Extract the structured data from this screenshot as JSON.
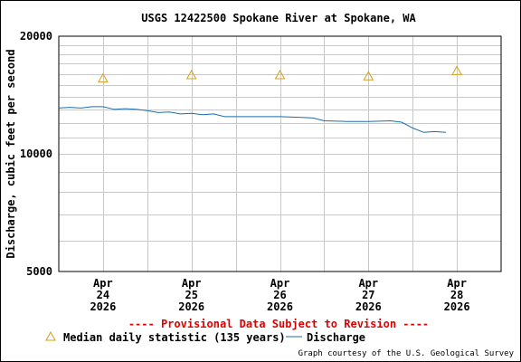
{
  "chart_data": {
    "type": "line",
    "title": "USGS 12422500 Spokane River at Spokane, WA",
    "ylabel": "Discharge, cubic feet per second",
    "xlabel": "",
    "y_scale": "log",
    "ylim": [
      5000,
      20000
    ],
    "y_ticks": [
      "5000",
      "10000",
      "20000"
    ],
    "x_range_days": [
      "2026-04-23T12:00",
      "2026-04-28T12:00"
    ],
    "x_ticks": [
      {
        "month": "Apr",
        "day": "24",
        "year": "2026",
        "date": "2026-04-24"
      },
      {
        "month": "Apr",
        "day": "25",
        "year": "2026",
        "date": "2026-04-25"
      },
      {
        "month": "Apr",
        "day": "26",
        "year": "2026",
        "date": "2026-04-26"
      },
      {
        "month": "Apr",
        "day": "27",
        "year": "2026",
        "date": "2026-04-27"
      },
      {
        "month": "Apr",
        "day": "28",
        "year": "2026",
        "date": "2026-04-28"
      }
    ],
    "grid": true,
    "legend_position": "bottom",
    "provisional_note": "---- Provisional Data Subject to Revision ----",
    "credit": "Graph courtesy of the U.S. Geological Survey",
    "median": {
      "name": "Median daily statistic (135 years)",
      "color": "#d4a017",
      "points": [
        {
          "date": "2026-04-24",
          "value": 15600
        },
        {
          "date": "2026-04-25",
          "value": 15900
        },
        {
          "date": "2026-04-26",
          "value": 15900
        },
        {
          "date": "2026-04-27",
          "value": 15800
        },
        {
          "date": "2026-04-28",
          "value": 16300
        }
      ]
    },
    "discharge": {
      "name": "Discharge",
      "color": "#1a6ea8",
      "points": [
        {
          "t": "2026-04-23T12:00",
          "value": 13100
        },
        {
          "t": "2026-04-23T15:00",
          "value": 13150
        },
        {
          "t": "2026-04-23T18:00",
          "value": 13100
        },
        {
          "t": "2026-04-23T21:00",
          "value": 13200
        },
        {
          "t": "2026-04-24T00:00",
          "value": 13200
        },
        {
          "t": "2026-04-24T03:00",
          "value": 13000
        },
        {
          "t": "2026-04-24T06:00",
          "value": 13050
        },
        {
          "t": "2026-04-24T09:00",
          "value": 13000
        },
        {
          "t": "2026-04-24T12:00",
          "value": 12900
        },
        {
          "t": "2026-04-24T15:00",
          "value": 12750
        },
        {
          "t": "2026-04-24T18:00",
          "value": 12800
        },
        {
          "t": "2026-04-24T21:00",
          "value": 12650
        },
        {
          "t": "2026-04-25T00:00",
          "value": 12700
        },
        {
          "t": "2026-04-25T03:00",
          "value": 12600
        },
        {
          "t": "2026-04-25T06:00",
          "value": 12650
        },
        {
          "t": "2026-04-25T09:00",
          "value": 12450
        },
        {
          "t": "2026-04-25T12:00",
          "value": 12450
        },
        {
          "t": "2026-04-25T18:00",
          "value": 12450
        },
        {
          "t": "2026-04-26T00:00",
          "value": 12450
        },
        {
          "t": "2026-04-26T06:00",
          "value": 12400
        },
        {
          "t": "2026-04-26T09:00",
          "value": 12350
        },
        {
          "t": "2026-04-26T12:00",
          "value": 12150
        },
        {
          "t": "2026-04-26T18:00",
          "value": 12100
        },
        {
          "t": "2026-04-27T00:00",
          "value": 12100
        },
        {
          "t": "2026-04-27T06:00",
          "value": 12150
        },
        {
          "t": "2026-04-27T09:00",
          "value": 12050
        },
        {
          "t": "2026-04-27T12:00",
          "value": 11650
        },
        {
          "t": "2026-04-27T15:00",
          "value": 11350
        },
        {
          "t": "2026-04-27T18:00",
          "value": 11400
        },
        {
          "t": "2026-04-27T21:00",
          "value": 11350
        }
      ]
    }
  }
}
